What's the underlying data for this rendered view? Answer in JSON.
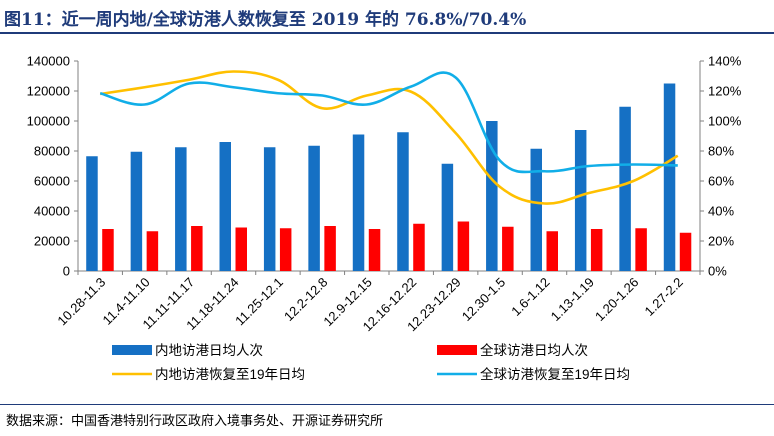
{
  "title": "图11：近一周内地/全球访港人数恢复至 2019 年的 76.8%/70.4%",
  "source": "数据来源：中国香港特别行政区政府入境事务处、开源证券研究所",
  "colors": {
    "bar_mainland": "#1570c4",
    "bar_global": "#ff0000",
    "line_mainland": "#ffc000",
    "line_global": "#11aee8",
    "title": "#1f3b7a"
  },
  "chart_data": {
    "type": "bar",
    "categories": [
      "10.28-11.3",
      "11.4-11.10",
      "11.11-11.17",
      "11.18-11.24",
      "11.25-12.1",
      "12.2-12.8",
      "12.9-12.15",
      "12.16-12.22",
      "12.23-12.29",
      "12.30-1.5",
      "1.6-1.12",
      "1.13-1.19",
      "1.20-1.26",
      "1.27-2.2"
    ],
    "series": [
      {
        "name": "内地访港日均人次",
        "type": "bar",
        "axis": "left",
        "values": [
          76500,
          79500,
          82500,
          86000,
          82500,
          83500,
          91000,
          92500,
          71500,
          100000,
          81500,
          94000,
          109500,
          125000
        ]
      },
      {
        "name": "全球访港日均人次",
        "type": "bar",
        "axis": "left",
        "values": [
          28000,
          26500,
          30000,
          29000,
          28500,
          30000,
          28000,
          31500,
          33000,
          29500,
          26500,
          28000,
          28500,
          25500
        ]
      },
      {
        "name": "内地访港恢复至19年日均",
        "type": "line",
        "axis": "right",
        "values": [
          118,
          122.5,
          127.5,
          133,
          127.5,
          108.5,
          117,
          119.5,
          92,
          56,
          45,
          52,
          60,
          76.8
        ]
      },
      {
        "name": "全球访港恢复至19年日均",
        "type": "line",
        "axis": "right",
        "values": [
          118.5,
          111,
          125,
          122.5,
          118.5,
          117,
          111,
          123,
          129,
          73.5,
          66.5,
          70,
          71,
          70.4
        ]
      }
    ],
    "ylim": [
      0,
      140000
    ],
    "y_ticks": [
      "0",
      "20000",
      "40000",
      "60000",
      "80000",
      "100000",
      "120000",
      "140000"
    ],
    "y2lim": [
      0,
      140
    ],
    "y2_ticks": [
      "0%",
      "20%",
      "40%",
      "60%",
      "80%",
      "100%",
      "120%",
      "140%"
    ],
    "grid": false,
    "legend_position": "bottom"
  }
}
